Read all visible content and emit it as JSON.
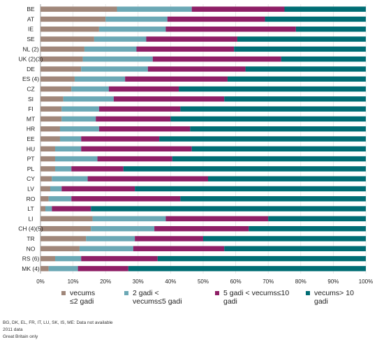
{
  "chart_data": {
    "type": "bar",
    "orientation": "horizontal",
    "stacked": true,
    "percent": true,
    "xlim": [
      0,
      100
    ],
    "x_ticks": [
      "0%",
      "10%",
      "20%",
      "30%",
      "40%",
      "50%",
      "60%",
      "70%",
      "80%",
      "90%",
      "100%"
    ],
    "categories": [
      "BE",
      "AT",
      "IE",
      "SE",
      "NL (2)",
      "UK (2)(3)",
      "DE",
      "ES (4)",
      "CZ",
      "SI",
      "FI",
      "MT",
      "HR",
      "EE",
      "HU",
      "PT",
      "PL",
      "CY",
      "LV",
      "RO",
      "LT",
      "LI",
      "CH (4)(5)",
      "TR",
      "NO",
      "RS (6)",
      "MK (4)"
    ],
    "series": [
      {
        "name": "vecums ≤2 gadi",
        "color": "#a0877a",
        "values": [
          23.5,
          20,
          18,
          16.5,
          13.5,
          13,
          12.5,
          10.5,
          9.5,
          7,
          6.5,
          6.5,
          6,
          6,
          4.5,
          4.5,
          4.5,
          3.5,
          3,
          2.5,
          1.5,
          16,
          15.5,
          14,
          12,
          4.5,
          2.5
        ]
      },
      {
        "name": "2 gadi < vecums ≤5 gadi",
        "color": "#6ba8b5",
        "values": [
          23,
          19,
          20.5,
          16,
          16,
          21.5,
          20.5,
          15.5,
          11.5,
          15.5,
          11.5,
          10.5,
          12,
          6.5,
          8,
          13,
          5,
          11,
          3.5,
          7,
          2,
          22.5,
          19.5,
          15,
          16.5,
          8,
          9
        ]
      },
      {
        "name": "5 gadi < vecums ≤10 gadi",
        "color": "#8e1f66",
        "values": [
          28.5,
          30,
          40,
          28,
          30,
          39.5,
          30,
          31.5,
          21.5,
          34,
          25,
          23,
          28,
          24,
          34,
          23,
          16,
          37,
          22.5,
          33.5,
          12,
          31.5,
          29,
          21,
          28,
          23.5,
          15.5
        ]
      },
      {
        "name": "vecums> 10 gadi",
        "color": "#006d74",
        "values": [
          25,
          31,
          21.5,
          39.5,
          40.5,
          26,
          37,
          42.5,
          57.5,
          43.5,
          57,
          60,
          54,
          63.5,
          53.5,
          59.5,
          74.5,
          48.5,
          71,
          57,
          84.5,
          30,
          36,
          50,
          43.5,
          64,
          73
        ]
      }
    ],
    "legend": {
      "position": "bottom",
      "items": [
        {
          "line1": "vecums",
          "line2": "≤2 gadi"
        },
        {
          "line1": "2 gadi <",
          "line2": "vecums≤5 gadi"
        },
        {
          "line1": "5 gadi < vecums≤10",
          "line2": "gadi"
        },
        {
          "line1": "vecums> 10",
          "line2": "gadi"
        }
      ]
    },
    "notes": [
      "BG, DK, EL, FR, IT, LU, SK, IS, ME: Data not available",
      "2011 data",
      "Great Britain only"
    ]
  }
}
